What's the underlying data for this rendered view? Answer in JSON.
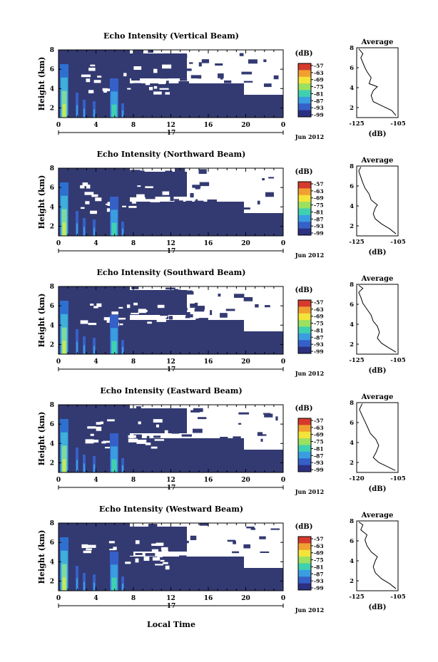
{
  "figure": {
    "xlabel": "Local Time",
    "date_label": "Jun 2012",
    "day_label": "17",
    "ylabel": "Height (km)",
    "colorbar_unit": "(dB)",
    "colorbar_ticks": [
      "-57",
      "-63",
      "-69",
      "-75",
      "-81",
      "-87",
      "-93",
      "-99"
    ],
    "colorbar_colors": [
      "#d53a2d",
      "#f0a030",
      "#f3e43a",
      "#9be060",
      "#3fd0b0",
      "#3a9de0",
      "#3560c8",
      "#2b3080"
    ],
    "time_ticks": [
      "0",
      "4",
      "8",
      "12",
      "16",
      "20",
      "0"
    ],
    "profile_title": "Average"
  },
  "chart_data": [
    {
      "type": "heatmap",
      "title": "Echo Intensity (Vertical Beam)",
      "xlabel": "",
      "ylabel": "Height (km)",
      "x_range_hours": [
        0,
        24
      ],
      "y_range_km": [
        1,
        8
      ],
      "yticks": [
        "2",
        "4",
        "6",
        "8"
      ],
      "color_range_db": [
        -99,
        -57
      ],
      "profile": {
        "type": "line",
        "title": "Average",
        "xlabel": "(dB)",
        "xticks": [
          "-125",
          "-105"
        ],
        "yticks": [
          "2",
          "4",
          "6",
          "8"
        ],
        "x_range": [
          -125,
          -105
        ],
        "y_range": [
          1,
          8
        ],
        "points": [
          [
            -106,
            1.2
          ],
          [
            -108,
            1.7
          ],
          [
            -113,
            2.2
          ],
          [
            -117,
            2.6
          ],
          [
            -118,
            3.2
          ],
          [
            -117,
            3.7
          ],
          [
            -115,
            4.1
          ],
          [
            -119,
            4.4
          ],
          [
            -118,
            5.0
          ],
          [
            -120,
            5.6
          ],
          [
            -121,
            6.0
          ],
          [
            -122,
            6.5
          ],
          [
            -123,
            7.0
          ],
          [
            -122,
            7.4
          ],
          [
            -124,
            7.9
          ]
        ]
      }
    },
    {
      "type": "heatmap",
      "title": "Echo Intensity (Northward Beam)",
      "xlabel": "",
      "ylabel": "Height (km)",
      "x_range_hours": [
        0,
        24
      ],
      "y_range_km": [
        1,
        8
      ],
      "yticks": [
        "2",
        "4",
        "6",
        "8"
      ],
      "color_range_db": [
        -99,
        -57
      ],
      "profile": {
        "type": "line",
        "title": "Average",
        "xlabel": "(dB)",
        "xticks": [
          "-125",
          "-105"
        ],
        "yticks": [
          "2",
          "4",
          "6",
          "8"
        ],
        "x_range": [
          -125,
          -105
        ],
        "y_range": [
          1,
          8
        ],
        "points": [
          [
            -106,
            1.2
          ],
          [
            -109,
            1.7
          ],
          [
            -113,
            2.2
          ],
          [
            -116,
            2.7
          ],
          [
            -117,
            3.2
          ],
          [
            -116,
            3.8
          ],
          [
            -115,
            4.1
          ],
          [
            -118,
            4.6
          ],
          [
            -119,
            5.2
          ],
          [
            -121,
            5.8
          ],
          [
            -122,
            6.3
          ],
          [
            -123,
            6.9
          ],
          [
            -124,
            7.5
          ],
          [
            -123,
            7.9
          ]
        ]
      }
    },
    {
      "type": "heatmap",
      "title": "Echo Intensity (Southward Beam)",
      "xlabel": "",
      "ylabel": "Height (km)",
      "x_range_hours": [
        0,
        24
      ],
      "y_range_km": [
        1,
        8
      ],
      "yticks": [
        "2",
        "4",
        "6",
        "8"
      ],
      "color_range_db": [
        -99,
        -57
      ],
      "profile": {
        "type": "line",
        "title": "Average",
        "xlabel": "(dB)",
        "xticks": [
          "-125",
          "-105"
        ],
        "yticks": [
          "2",
          "4",
          "6",
          "8"
        ],
        "x_range": [
          -125,
          -105
        ],
        "y_range": [
          1,
          8
        ],
        "points": [
          [
            -106,
            1.2
          ],
          [
            -110,
            1.7
          ],
          [
            -113,
            2.1
          ],
          [
            -115,
            2.6
          ],
          [
            -114,
            3.2
          ],
          [
            -115,
            3.8
          ],
          [
            -117,
            4.3
          ],
          [
            -118,
            4.9
          ],
          [
            -120,
            5.5
          ],
          [
            -122,
            6.1
          ],
          [
            -123,
            6.7
          ],
          [
            -124,
            7.2
          ],
          [
            -122,
            7.6
          ],
          [
            -124,
            7.9
          ]
        ]
      }
    },
    {
      "type": "heatmap",
      "title": "Echo Intensity (Eastward Beam)",
      "xlabel": "",
      "ylabel": "Height (km)",
      "x_range_hours": [
        0,
        24
      ],
      "y_range_km": [
        1,
        8
      ],
      "yticks": [
        "2",
        "4",
        "6",
        "8"
      ],
      "color_range_db": [
        -99,
        -57
      ],
      "profile": {
        "type": "line",
        "title": "Average",
        "xlabel": "(dB)",
        "xticks": [
          "-120",
          "-105"
        ],
        "yticks": [
          "2",
          "4",
          "6",
          "8"
        ],
        "x_range": [
          -120,
          -105
        ],
        "y_range": [
          1,
          8
        ],
        "points": [
          [
            -106,
            1.2
          ],
          [
            -109,
            1.6
          ],
          [
            -112,
            2.0
          ],
          [
            -114,
            2.5
          ],
          [
            -113,
            3.0
          ],
          [
            -112,
            3.7
          ],
          [
            -113,
            4.3
          ],
          [
            -115,
            4.9
          ],
          [
            -116,
            5.5
          ],
          [
            -117,
            6.1
          ],
          [
            -118,
            6.7
          ],
          [
            -119,
            7.3
          ],
          [
            -118,
            7.9
          ]
        ]
      }
    },
    {
      "type": "heatmap",
      "title": "Echo Intensity (Westward Beam)",
      "xlabel": "Local Time",
      "ylabel": "Height (km)",
      "x_range_hours": [
        0,
        24
      ],
      "y_range_km": [
        1,
        8
      ],
      "yticks": [
        "2",
        "4",
        "6",
        "8"
      ],
      "color_range_db": [
        -99,
        -57
      ],
      "profile": {
        "type": "line",
        "title": "Average",
        "xlabel": "(dB)",
        "xticks": [
          "-125",
          "-105"
        ],
        "yticks": [
          "2",
          "4",
          "6",
          "8"
        ],
        "x_range": [
          -125,
          -105
        ],
        "y_range": [
          1,
          8
        ],
        "points": [
          [
            -106,
            1.2
          ],
          [
            -109,
            1.7
          ],
          [
            -113,
            2.2
          ],
          [
            -116,
            2.8
          ],
          [
            -117,
            3.4
          ],
          [
            -116,
            4.0
          ],
          [
            -115,
            4.4
          ],
          [
            -118,
            4.9
          ],
          [
            -120,
            5.5
          ],
          [
            -121,
            6.1
          ],
          [
            -120,
            6.6
          ],
          [
            -123,
            7.1
          ],
          [
            -122,
            7.6
          ],
          [
            -124,
            7.9
          ]
        ]
      }
    }
  ]
}
